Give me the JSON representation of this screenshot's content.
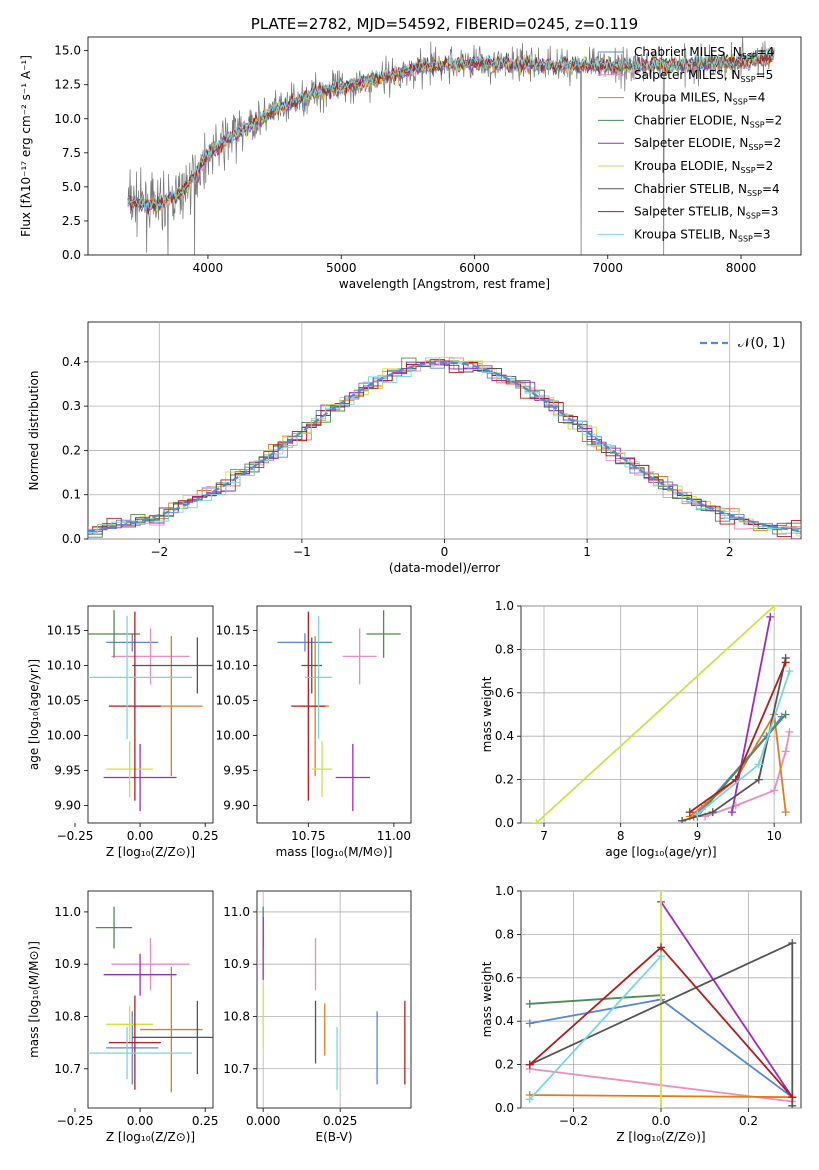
{
  "colors": {
    "chabrier_miles": "#5b86d6",
    "salpeter_miles": "#e78fbf",
    "kroupa_miles": "#e07b22",
    "chabrier_elodie": "#4f8a56",
    "salpeter_elodie": "#9b2cc0",
    "kroupa_elodie": "#cde14a",
    "chabrier_stelib": "#555555",
    "salpeter_stelib": "#b01e1e",
    "kroupa_stelib": "#79d6df"
  },
  "chart_data": [
    {
      "id": "spectrum",
      "type": "line",
      "title": "PLATE=2782, MJD=54592, FIBERID=0245, z=0.119",
      "xlabel": "wavelength [Angstrom, rest frame]",
      "ylabel": "Flux [fλ10⁻¹⁷ erg cm⁻² s⁻¹ A⁻¹]",
      "xlim": [
        3100,
        8450
      ],
      "ylim": [
        0,
        16
      ],
      "xticks": [
        "4000",
        "5000",
        "6000",
        "7000",
        "8000"
      ],
      "yticks": [
        "0.0",
        "2.5",
        "5.0",
        "7.5",
        "10.0",
        "12.5",
        "15.0"
      ],
      "legend": {
        "placement": "top-right",
        "entries": [
          {
            "label": "Chabrier MILES, N",
            "sub": "SSP",
            "eq": "=4",
            "color": "chabrier_miles"
          },
          {
            "label": "Salpeter MILES, N",
            "sub": "SSP",
            "eq": "=5",
            "color": "salpeter_miles"
          },
          {
            "label": "Kroupa MILES, N",
            "sub": "SSP",
            "eq": "=4",
            "color": "kroupa_miles"
          },
          {
            "label": "Chabrier ELODIE, N",
            "sub": "SSP",
            "eq": "=2",
            "color": "chabrier_elodie"
          },
          {
            "label": "Salpeter ELODIE, N",
            "sub": "SSP",
            "eq": "=2",
            "color": "salpeter_elodie"
          },
          {
            "label": "Kroupa ELODIE, N",
            "sub": "SSP",
            "eq": "=2",
            "color": "kroupa_elodie"
          },
          {
            "label": "Chabrier STELIB, N",
            "sub": "SSP",
            "eq": "=4",
            "color": "chabrier_stelib"
          },
          {
            "label": "Salpeter STELIB, N",
            "sub": "SSP",
            "eq": "=3",
            "color": "salpeter_stelib"
          },
          {
            "label": "Kroupa STELIB, N",
            "sub": "SSP",
            "eq": "=3",
            "color": "kroupa_stelib"
          }
        ]
      },
      "continuum": [
        [
          3400,
          4.0
        ],
        [
          3600,
          3.6
        ],
        [
          3800,
          4.5
        ],
        [
          3900,
          5.8
        ],
        [
          4000,
          7.4
        ],
        [
          4200,
          8.8
        ],
        [
          4500,
          10.6
        ],
        [
          4800,
          11.9
        ],
        [
          5200,
          12.7
        ],
        [
          5600,
          13.8
        ],
        [
          6000,
          14.1
        ],
        [
          6400,
          14.0
        ],
        [
          6800,
          13.9
        ],
        [
          7200,
          13.9
        ],
        [
          7600,
          14.0
        ],
        [
          8000,
          14.2
        ],
        [
          8250,
          14.6
        ]
      ],
      "dips": [
        [
          3700,
          0
        ],
        [
          3900,
          0
        ],
        [
          6800,
          0
        ],
        [
          7420,
          0
        ]
      ]
    },
    {
      "id": "residuals",
      "type": "line",
      "xlabel": "(data-model)/error",
      "ylabel": "Normed distribution",
      "xlim": [
        -2.5,
        2.5
      ],
      "ylim": [
        0,
        0.49
      ],
      "xticks": [
        "−2",
        "−1",
        "0",
        "1",
        "2"
      ],
      "yticks": [
        "0.0",
        "0.1",
        "0.2",
        "0.3",
        "0.4"
      ],
      "grid": true,
      "legend": {
        "placement": "top-right",
        "label": "𝒩(0, 1)"
      }
    },
    {
      "id": "age-vs-Z",
      "type": "scatter",
      "xlabel": "Z [log₁₀(Z/Z⊙)]",
      "ylabel": "age  [log₁₀(age/yr)]",
      "xlim": [
        -0.2,
        0.28
      ],
      "ylim": [
        9.875,
        10.185
      ],
      "xticks": [
        "−0.25",
        "0.00",
        "0.25"
      ],
      "yticks": [
        "9.90",
        "9.95",
        "10.00",
        "10.05",
        "10.10",
        "10.15"
      ],
      "crosses": [
        {
          "color": "chabrier_miles",
          "x": -0.03,
          "xerr": 0.1,
          "y": 10.133,
          "yerr": 0.013
        },
        {
          "color": "salpeter_miles",
          "x": 0.04,
          "xerr": 0.15,
          "y": 10.113,
          "yerr": 0.04
        },
        {
          "color": "kroupa_miles",
          "x": 0.12,
          "xerr": 0.12,
          "y": 10.042,
          "yerr": 0.1
        },
        {
          "color": "chabrier_elodie",
          "x": -0.1,
          "xerr": 0.1,
          "y": 10.145,
          "yerr": 0.034
        },
        {
          "color": "salpeter_elodie",
          "x": 0.0,
          "xerr": 0.14,
          "y": 9.94,
          "yerr": 0.048
        },
        {
          "color": "kroupa_elodie",
          "x": -0.04,
          "xerr": 0.09,
          "y": 9.952,
          "yerr": 0.04
        },
        {
          "color": "chabrier_stelib",
          "x": 0.22,
          "xerr": 0.25,
          "y": 10.1,
          "yerr": 0.04
        },
        {
          "color": "salpeter_stelib",
          "x": -0.02,
          "xerr": 0.1,
          "y": 10.042,
          "yerr": 0.135
        },
        {
          "color": "kroupa_stelib",
          "x": -0.05,
          "xerr": 0.25,
          "y": 10.083,
          "yerr": 0.088
        }
      ]
    },
    {
      "id": "age-vs-mass",
      "type": "scatter",
      "xlabel": "mass [log₁₀(M/M⊙)]",
      "ylabel": "",
      "xlim": [
        10.6,
        11.05
      ],
      "ylim": [
        9.875,
        10.185
      ],
      "xticks": [
        "10.75",
        "11.00"
      ],
      "yticks": [
        "9.90",
        "9.95",
        "10.00",
        "10.05",
        "10.10",
        "10.15"
      ],
      "crosses": [
        {
          "color": "chabrier_miles",
          "x": 10.74,
          "xerr": 0.08,
          "y": 10.133,
          "yerr": 0.013
        },
        {
          "color": "salpeter_miles",
          "x": 10.9,
          "xerr": 0.05,
          "y": 10.113,
          "yerr": 0.04
        },
        {
          "color": "kroupa_miles",
          "x": 10.77,
          "xerr": 0.04,
          "y": 10.042,
          "yerr": 0.1
        },
        {
          "color": "chabrier_elodie",
          "x": 10.97,
          "xerr": 0.05,
          "y": 10.145,
          "yerr": 0.034
        },
        {
          "color": "salpeter_elodie",
          "x": 10.88,
          "xerr": 0.05,
          "y": 9.94,
          "yerr": 0.048
        },
        {
          "color": "kroupa_elodie",
          "x": 10.79,
          "xerr": 0.03,
          "y": 9.952,
          "yerr": 0.04
        },
        {
          "color": "chabrier_stelib",
          "x": 10.76,
          "xerr": 0.03,
          "y": 10.1,
          "yerr": 0.04
        },
        {
          "color": "salpeter_stelib",
          "x": 10.75,
          "xerr": 0.05,
          "y": 10.042,
          "yerr": 0.135
        },
        {
          "color": "kroupa_stelib",
          "x": 10.78,
          "xerr": 0.04,
          "y": 10.083,
          "yerr": 0.088
        }
      ]
    },
    {
      "id": "weight-vs-age",
      "type": "line",
      "xlabel": "age  [log₁₀(age/yr)]",
      "ylabel": "mass weight",
      "xlim": [
        6.7,
        10.35
      ],
      "ylim": [
        0,
        1
      ],
      "xticks": [
        "7",
        "8",
        "9",
        "10"
      ],
      "yticks": [
        "0.0",
        "0.2",
        "0.4",
        "0.6",
        "0.8",
        "1.0"
      ],
      "grid": true,
      "series": [
        {
          "color": "chabrier_miles",
          "points": [
            [
              8.95,
              0.03
            ],
            [
              9.1,
              0.08
            ],
            [
              9.9,
              0.4
            ],
            [
              10.1,
              0.49
            ]
          ]
        },
        {
          "color": "salpeter_miles",
          "points": [
            [
              9.1,
              0.03
            ],
            [
              9.5,
              0.08
            ],
            [
              10.0,
              0.15
            ],
            [
              10.15,
              0.33
            ],
            [
              10.2,
              0.42
            ]
          ]
        },
        {
          "color": "kroupa_miles",
          "points": [
            [
              8.9,
              0.03
            ],
            [
              9.5,
              0.2
            ],
            [
              10.0,
              0.5
            ],
            [
              10.15,
              0.05
            ]
          ]
        },
        {
          "color": "chabrier_elodie",
          "points": [
            [
              9.0,
              0.03
            ],
            [
              10.15,
              0.5
            ]
          ]
        },
        {
          "color": "salpeter_elodie",
          "points": [
            [
              9.45,
              0.05
            ],
            [
              9.95,
              0.95
            ]
          ]
        },
        {
          "color": "kroupa_elodie",
          "points": [
            [
              6.9,
              0.0
            ],
            [
              10.0,
              1.0
            ]
          ]
        },
        {
          "color": "chabrier_stelib",
          "points": [
            [
              8.8,
              0.01
            ],
            [
              9.2,
              0.05
            ],
            [
              9.8,
              0.2
            ],
            [
              10.15,
              0.76
            ]
          ]
        },
        {
          "color": "salpeter_stelib",
          "points": [
            [
              8.9,
              0.05
            ],
            [
              9.5,
              0.2
            ],
            [
              10.15,
              0.74
            ]
          ]
        },
        {
          "color": "kroupa_stelib",
          "points": [
            [
              9.0,
              0.04
            ],
            [
              9.8,
              0.27
            ],
            [
              10.2,
              0.7
            ]
          ]
        }
      ]
    },
    {
      "id": "mass-vs-Z",
      "type": "scatter",
      "xlabel": "Z [log₁₀(Z/Z⊙)]",
      "ylabel": "mass [log₁₀(M/M⊙)]",
      "xlim": [
        -0.2,
        0.28
      ],
      "ylim": [
        10.625,
        11.04
      ],
      "xticks": [
        "−0.25",
        "0.00",
        "0.25"
      ],
      "yticks": [
        "10.7",
        "10.8",
        "10.9",
        "11.0"
      ],
      "crosses": [
        {
          "color": "chabrier_miles",
          "x": -0.03,
          "xerr": 0.1,
          "y": 10.74,
          "yerr": 0.07
        },
        {
          "color": "salpeter_miles",
          "x": 0.04,
          "xerr": 0.15,
          "y": 10.9,
          "yerr": 0.05
        },
        {
          "color": "kroupa_miles",
          "x": 0.12,
          "xerr": 0.12,
          "y": 10.775,
          "yerr": 0.12
        },
        {
          "color": "chabrier_elodie",
          "x": -0.1,
          "xerr": 0.07,
          "y": 10.97,
          "yerr": 0.04
        },
        {
          "color": "salpeter_elodie",
          "x": 0.0,
          "xerr": 0.14,
          "y": 10.88,
          "yerr": 0.04
        },
        {
          "color": "kroupa_elodie",
          "x": -0.04,
          "xerr": 0.09,
          "y": 10.785,
          "yerr": 0.035
        },
        {
          "color": "chabrier_stelib",
          "x": 0.22,
          "xerr": 0.25,
          "y": 10.76,
          "yerr": 0.07
        },
        {
          "color": "salpeter_stelib",
          "x": -0.02,
          "xerr": 0.1,
          "y": 10.75,
          "yerr": 0.09
        },
        {
          "color": "kroupa_stelib",
          "x": -0.05,
          "xerr": 0.25,
          "y": 10.73,
          "yerr": 0.05
        }
      ]
    },
    {
      "id": "mass-vs-ebv",
      "type": "scatter",
      "xlabel": "E(B-V)",
      "ylabel": "",
      "xlim": [
        -0.002,
        0.048
      ],
      "ylim": [
        10.625,
        11.04
      ],
      "xticks": [
        "0.000",
        "0.025"
      ],
      "yticks": [
        "10.7",
        "10.8",
        "10.9",
        "11.0"
      ],
      "grid": true,
      "crosses": [
        {
          "color": "chabrier_miles",
          "x": 0.037,
          "xerr": 0,
          "y": 10.74,
          "yerr": 0.07
        },
        {
          "color": "salpeter_miles",
          "x": 0.017,
          "xerr": 0,
          "y": 10.9,
          "yerr": 0.05
        },
        {
          "color": "kroupa_miles",
          "x": 0.02,
          "xerr": 0,
          "y": 10.775,
          "yerr": 0.05
        },
        {
          "color": "chabrier_elodie",
          "x": 0.0,
          "xerr": 0,
          "y": 10.97,
          "yerr": 0.04
        },
        {
          "color": "salpeter_elodie",
          "x": 0.0,
          "xerr": 0,
          "y": 10.93,
          "yerr": 0.06
        },
        {
          "color": "kroupa_elodie",
          "x": 0.0,
          "xerr": 0,
          "y": 10.8,
          "yerr": 0.06
        },
        {
          "color": "chabrier_stelib",
          "x": 0.017,
          "xerr": 0,
          "y": 10.77,
          "yerr": 0.06
        },
        {
          "color": "salpeter_stelib",
          "x": 0.046,
          "xerr": 0,
          "y": 10.75,
          "yerr": 0.08
        },
        {
          "color": "kroupa_stelib",
          "x": 0.024,
          "xerr": 0,
          "y": 10.72,
          "yerr": 0.06
        }
      ]
    },
    {
      "id": "weight-vs-Z",
      "type": "line",
      "xlabel": "Z [log₁₀(Z/Z⊙)]",
      "ylabel": "mass weight",
      "xlim": [
        -0.32,
        0.32
      ],
      "ylim": [
        0,
        1
      ],
      "xticks": [
        "−0.2",
        "0.0",
        "0.2"
      ],
      "yticks": [
        "0.0",
        "0.2",
        "0.4",
        "0.6",
        "0.8",
        "1.0"
      ],
      "grid": true,
      "series": [
        {
          "color": "chabrier_miles",
          "points": [
            [
              -0.3,
              0.39
            ],
            [
              0.0,
              0.5
            ],
            [
              0.3,
              0.05
            ]
          ]
        },
        {
          "color": "salpeter_miles",
          "points": [
            [
              -0.3,
              0.18
            ],
            [
              0.3,
              0.03
            ]
          ]
        },
        {
          "color": "kroupa_miles",
          "points": [
            [
              -0.3,
              0.06
            ],
            [
              0.3,
              0.05
            ]
          ]
        },
        {
          "color": "chabrier_elodie",
          "points": [
            [
              -0.3,
              0.48
            ],
            [
              0.0,
              0.52
            ]
          ]
        },
        {
          "color": "salpeter_elodie",
          "points": [
            [
              0.0,
              0.95
            ],
            [
              0.3,
              0.05
            ]
          ]
        },
        {
          "color": "kroupa_elodie",
          "points": [
            [
              0.0,
              0.0
            ],
            [
              0.0,
              1.0
            ]
          ]
        },
        {
          "color": "chabrier_stelib",
          "points": [
            [
              -0.3,
              0.2
            ],
            [
              0.3,
              0.76
            ],
            [
              0.3,
              0.01
            ]
          ]
        },
        {
          "color": "salpeter_stelib",
          "points": [
            [
              -0.3,
              0.2
            ],
            [
              0.0,
              0.74
            ],
            [
              0.3,
              0.05
            ]
          ]
        },
        {
          "color": "kroupa_stelib",
          "points": [
            [
              -0.3,
              0.04
            ],
            [
              0.0,
              0.7
            ]
          ]
        }
      ]
    }
  ]
}
